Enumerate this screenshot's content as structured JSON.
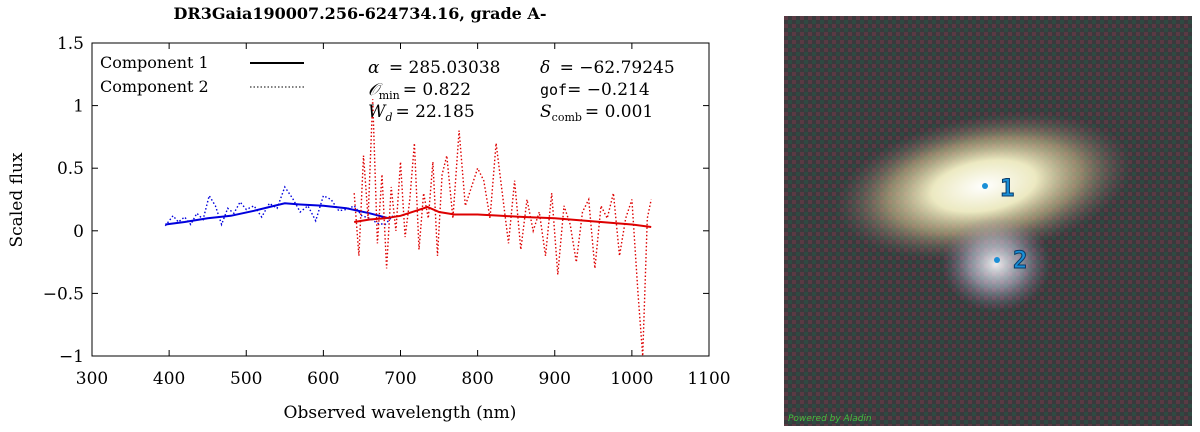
{
  "chart_data": {
    "type": "line",
    "title": "DR3Gaia190007.256-624734.16, grade A-",
    "xlabel": "Observed wavelength (nm)",
    "ylabel": "Scaled flux",
    "xlim": [
      300,
      1100
    ],
    "ylim": [
      -1,
      1.5
    ],
    "xticks": [
      300,
      400,
      500,
      600,
      700,
      800,
      900,
      1000,
      1100
    ],
    "yticks": [
      -1,
      -0.5,
      0,
      0.5,
      1,
      1.5
    ],
    "xtick_labels": [
      "300",
      "400",
      "500",
      "600",
      "700",
      "800",
      "900",
      "1000",
      "1100"
    ],
    "ytick_labels": [
      "−1",
      "−0.5",
      "0",
      "0.5",
      "1",
      "1.5"
    ],
    "grid": false,
    "legend_position": "top-left",
    "legend": {
      "component_1": "Component 1",
      "component_2": "Component 2"
    },
    "annotations": {
      "alpha_label": "α",
      "alpha_value": "= 285.03038",
      "delta_label": "δ",
      "delta_value": "= −62.79245",
      "omin_symbol": "𝒪",
      "omin_sub": "min",
      "omin_value": "= 0.822",
      "gof_label": "gof",
      "gof_value": "= −0.214",
      "wd_label": "W",
      "wd_sub": "d",
      "wd_value": "= 22.185",
      "scomb_label": "S",
      "scomb_sub": "comb",
      "scomb_value": "= 0.001"
    },
    "series": [
      {
        "style": "solid",
        "color": "#0000dd",
        "x": [
          395,
          420,
          450,
          480,
          510,
          530,
          550,
          570,
          600,
          630,
          660,
          685
        ],
        "y": [
          0.05,
          0.07,
          0.1,
          0.12,
          0.16,
          0.19,
          0.22,
          0.21,
          0.2,
          0.18,
          0.14,
          0.1
        ]
      },
      {
        "style": "dotted",
        "color": "#0000dd",
        "x": [
          395,
          405,
          412,
          420,
          428,
          436,
          444,
          452,
          460,
          468,
          476,
          484,
          492,
          500,
          510,
          520,
          530,
          540,
          550,
          560,
          570,
          580,
          590,
          600,
          610,
          620,
          630,
          640,
          650,
          660,
          670,
          680,
          690
        ],
        "y": [
          0.04,
          0.12,
          0.07,
          0.11,
          0.05,
          0.14,
          0.09,
          0.28,
          0.2,
          0.05,
          0.18,
          0.14,
          0.23,
          0.17,
          0.2,
          0.11,
          0.22,
          0.18,
          0.35,
          0.26,
          0.15,
          0.2,
          0.08,
          0.28,
          0.25,
          0.16,
          0.17,
          0.2,
          0.12,
          0.1,
          0.06,
          0.05,
          0.12
        ]
      },
      {
        "style": "solid",
        "color": "#dd0000",
        "x": [
          640,
          660,
          680,
          700,
          720,
          735,
          750,
          770,
          800,
          830,
          860,
          900,
          940,
          980,
          1000,
          1025
        ],
        "y": [
          0.07,
          0.09,
          0.1,
          0.12,
          0.16,
          0.19,
          0.15,
          0.13,
          0.13,
          0.12,
          0.11,
          0.1,
          0.08,
          0.06,
          0.05,
          0.03
        ]
      },
      {
        "style": "dotted",
        "color": "#dd0000",
        "x": [
          640,
          646,
          652,
          658,
          664,
          670,
          676,
          682,
          688,
          694,
          700,
          706,
          712,
          718,
          724,
          730,
          736,
          742,
          748,
          754,
          760,
          768,
          776,
          784,
          792,
          800,
          808,
          816,
          824,
          832,
          840,
          848,
          856,
          864,
          872,
          880,
          888,
          896,
          904,
          912,
          920,
          928,
          936,
          944,
          952,
          960,
          968,
          976,
          984,
          992,
          1000,
          1008,
          1014,
          1020,
          1025
        ],
        "y": [
          0.3,
          -0.2,
          0.6,
          0.1,
          1.05,
          -0.1,
          0.45,
          -0.3,
          0.35,
          0.0,
          0.55,
          -0.05,
          0.25,
          0.7,
          -0.15,
          0.3,
          0.1,
          0.55,
          -0.2,
          0.45,
          0.6,
          0.1,
          0.8,
          0.2,
          0.35,
          0.5,
          0.4,
          0.1,
          0.7,
          0.3,
          -0.1,
          0.4,
          -0.15,
          0.25,
          0.0,
          0.15,
          -0.2,
          0.3,
          -0.35,
          0.2,
          0.05,
          -0.25,
          0.15,
          0.25,
          -0.3,
          0.2,
          0.1,
          0.3,
          -0.2,
          0.1,
          0.25,
          -0.5,
          -1.05,
          0.1,
          0.25
        ]
      }
    ]
  },
  "sky_image": {
    "marker_1": "1",
    "marker_2": "2",
    "credit": "Powered by Aladin",
    "marker_color": "#1a8fd6"
  }
}
